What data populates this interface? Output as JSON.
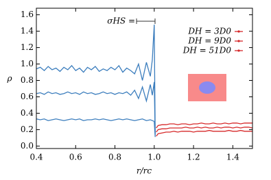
{
  "chart_data": {
    "type": "line",
    "x_label": "r/rc",
    "y_label": "ρ",
    "annotation": "σHS =",
    "xlim": [
      0.4,
      1.5
    ],
    "ylim": [
      -0.03,
      1.68
    ],
    "xticks": [
      0.4,
      0.6,
      0.8,
      {
        "value": 1,
        "label": "1.0"
      },
      1.2,
      1.4
    ],
    "yticks": [
      {
        "value": 0,
        "label": "0.0"
      },
      0.2,
      0.4,
      0.6,
      0.8,
      {
        "value": 1,
        "label": "1.0"
      },
      1.2,
      1.4,
      1.6
    ],
    "grid": false,
    "legend": "upper right",
    "x": [
      0.4,
      0.42,
      0.44,
      0.46,
      0.48,
      0.5,
      0.52,
      0.54,
      0.56,
      0.58,
      0.6,
      0.62,
      0.64,
      0.66,
      0.68,
      0.7,
      0.72,
      0.74,
      0.76,
      0.78,
      0.8,
      0.82,
      0.84,
      0.86,
      0.88,
      0.9,
      0.92,
      0.94,
      0.96,
      0.98,
      0.99,
      1.0,
      1.005,
      1.01,
      1.02,
      1.04,
      1.06,
      1.08,
      1.1,
      1.12,
      1.14,
      1.16,
      1.18,
      1.2,
      1.22,
      1.24,
      1.26,
      1.28,
      1.3,
      1.32,
      1.34,
      1.36,
      1.38,
      1.4,
      1.42,
      1.44,
      1.46,
      1.48,
      1.5
    ],
    "series": [
      {
        "color": "#3b7dbd",
        "values": [
          0.94,
          0.96,
          0.92,
          0.97,
          0.93,
          0.95,
          0.91,
          0.96,
          0.93,
          0.98,
          0.92,
          0.95,
          0.9,
          0.96,
          0.93,
          0.97,
          0.91,
          0.94,
          0.92,
          0.96,
          0.93,
          0.98,
          0.9,
          0.95,
          0.92,
          0.88,
          1.0,
          0.8,
          1.02,
          0.85,
          1.05,
          1.48,
          0.15,
          null,
          null,
          null,
          null,
          null,
          null,
          null,
          null,
          null,
          null,
          null,
          null,
          null,
          null,
          null,
          null,
          null,
          null,
          null,
          null,
          null,
          null,
          null,
          null,
          null,
          null
        ]
      },
      {
        "color": "#3b7dbd",
        "values": [
          0.64,
          0.65,
          0.63,
          0.66,
          0.64,
          0.65,
          0.63,
          0.64,
          0.66,
          0.64,
          0.65,
          0.63,
          0.66,
          0.64,
          0.65,
          0.63,
          0.64,
          0.66,
          0.64,
          0.65,
          0.63,
          0.65,
          0.64,
          0.66,
          0.62,
          0.68,
          0.58,
          0.72,
          0.55,
          0.75,
          0.62,
          0.78,
          0.13,
          null,
          null,
          null,
          null,
          null,
          null,
          null,
          null,
          null,
          null,
          null,
          null,
          null,
          null,
          null,
          null,
          null,
          null,
          null,
          null,
          null,
          null,
          null,
          null,
          null,
          null
        ]
      },
      {
        "color": "#3b7dbd",
        "values": [
          0.33,
          0.32,
          0.33,
          0.31,
          0.32,
          0.33,
          0.32,
          0.31,
          0.32,
          0.33,
          0.32,
          0.33,
          0.31,
          0.32,
          0.32,
          0.33,
          0.32,
          0.33,
          0.32,
          0.31,
          0.32,
          0.33,
          0.32,
          0.33,
          0.32,
          0.31,
          0.32,
          0.33,
          0.31,
          0.32,
          0.31,
          0.3,
          0.11,
          null,
          null,
          null,
          null,
          null,
          null,
          null,
          null,
          null,
          null,
          null,
          null,
          null,
          null,
          null,
          null,
          null,
          null,
          null,
          null,
          null,
          null,
          null,
          null,
          null,
          null
        ]
      },
      {
        "name": "DH = 3D0",
        "color": "#d62728",
        "values": [
          null,
          null,
          null,
          null,
          null,
          null,
          null,
          null,
          null,
          null,
          null,
          null,
          null,
          null,
          null,
          null,
          null,
          null,
          null,
          null,
          null,
          null,
          null,
          null,
          null,
          null,
          null,
          null,
          null,
          null,
          null,
          null,
          null,
          0.22,
          0.25,
          0.26,
          0.26,
          0.27,
          0.27,
          0.26,
          0.27,
          0.27,
          0.26,
          0.27,
          0.27,
          0.28,
          0.27,
          0.27,
          0.28,
          0.27,
          0.27,
          0.28,
          0.27,
          0.28,
          0.28,
          0.27,
          0.28,
          0.28,
          0.28
        ]
      },
      {
        "name": "DH = 9D0",
        "color": "#d62728",
        "values": [
          null,
          null,
          null,
          null,
          null,
          null,
          null,
          null,
          null,
          null,
          null,
          null,
          null,
          null,
          null,
          null,
          null,
          null,
          null,
          null,
          null,
          null,
          null,
          null,
          null,
          null,
          null,
          null,
          null,
          null,
          null,
          null,
          null,
          0.17,
          0.2,
          0.21,
          0.21,
          0.22,
          0.22,
          0.22,
          0.22,
          0.23,
          0.22,
          0.22,
          0.23,
          0.22,
          0.23,
          0.22,
          0.22,
          0.23,
          0.22,
          0.23,
          0.23,
          0.22,
          0.23,
          0.22,
          0.23,
          0.23,
          0.22
        ]
      },
      {
        "name": "DH = 51D0",
        "color": "#d62728",
        "values": [
          null,
          null,
          null,
          null,
          null,
          null,
          null,
          null,
          null,
          null,
          null,
          null,
          null,
          null,
          null,
          null,
          null,
          null,
          null,
          null,
          null,
          null,
          null,
          null,
          null,
          null,
          null,
          null,
          null,
          null,
          null,
          null,
          null,
          0.12,
          0.15,
          0.16,
          0.17,
          0.17,
          0.18,
          0.17,
          0.18,
          0.18,
          0.18,
          0.17,
          0.18,
          0.18,
          0.18,
          0.19,
          0.18,
          0.18,
          0.18,
          0.18,
          0.19,
          0.18,
          0.18,
          0.19,
          0.18,
          0.18,
          0.18
        ]
      }
    ]
  }
}
